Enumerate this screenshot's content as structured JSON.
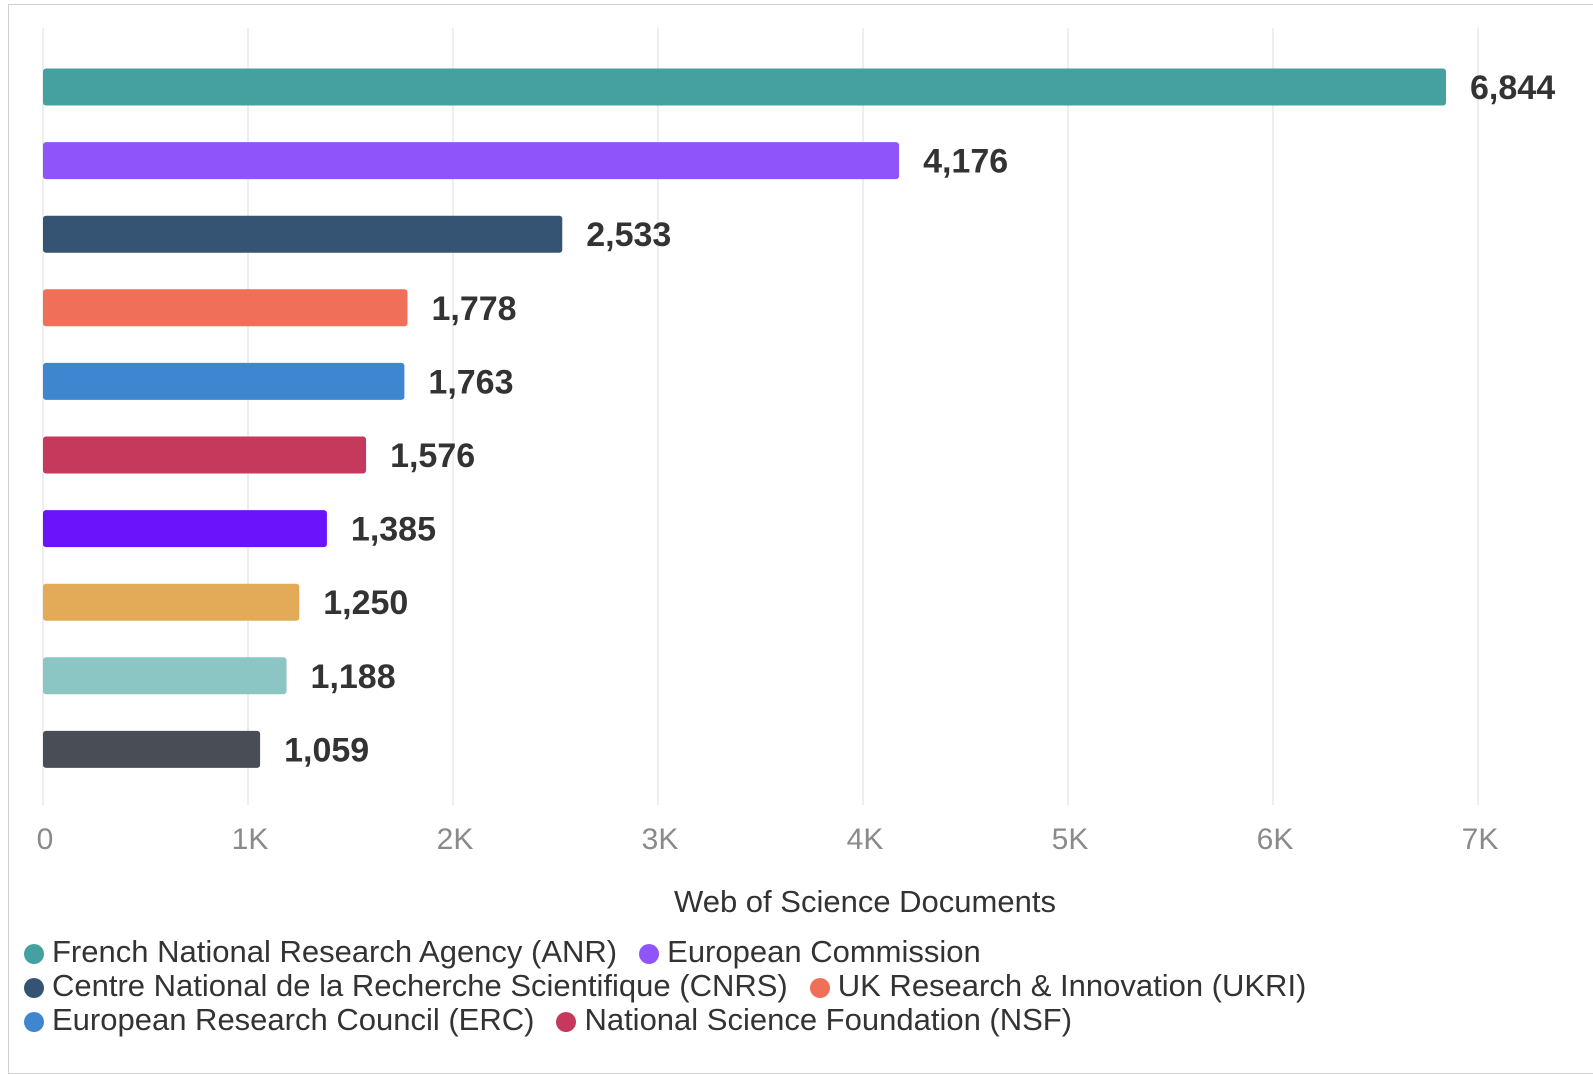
{
  "chart_data": {
    "type": "bar",
    "orientation": "horizontal",
    "xlabel": "Web of Science Documents",
    "xlim": [
      0,
      7000
    ],
    "xticks": [
      {
        "value": 0,
        "label": "0"
      },
      {
        "value": 1000,
        "label": "1K"
      },
      {
        "value": 2000,
        "label": "2K"
      },
      {
        "value": 3000,
        "label": "3K"
      },
      {
        "value": 4000,
        "label": "4K"
      },
      {
        "value": 5000,
        "label": "5K"
      },
      {
        "value": 6000,
        "label": "6K"
      },
      {
        "value": 7000,
        "label": "7K"
      }
    ],
    "grid": true,
    "legend_position": "bottom-left",
    "bars": [
      {
        "value": 6844,
        "label": "6,844",
        "color": "#45a19f"
      },
      {
        "value": 4176,
        "label": "4,176",
        "color": "#8f55fa"
      },
      {
        "value": 2533,
        "label": "2,533",
        "color": "#355473"
      },
      {
        "value": 1778,
        "label": "1,778",
        "color": "#f06f58"
      },
      {
        "value": 1763,
        "label": "1,763",
        "color": "#3f86d0"
      },
      {
        "value": 1576,
        "label": "1,576",
        "color": "#c53a5c"
      },
      {
        "value": 1385,
        "label": "1,385",
        "color": "#6b14fb"
      },
      {
        "value": 1250,
        "label": "1,250",
        "color": "#e3ab58"
      },
      {
        "value": 1188,
        "label": "1,188",
        "color": "#8cc6c4"
      },
      {
        "value": 1059,
        "label": "1,059",
        "color": "#494d55"
      }
    ],
    "legend": [
      [
        {
          "name": "French National Research Agency (ANR)",
          "color": "#45a19f"
        },
        {
          "name": "European Commission",
          "color": "#8f55fa"
        }
      ],
      [
        {
          "name": "Centre National de la Recherche Scientifique (CNRS)",
          "color": "#355473"
        },
        {
          "name": "UK Research & Innovation (UKRI)",
          "color": "#f06f58"
        }
      ],
      [
        {
          "name": "European Research Council (ERC)",
          "color": "#3f86d0"
        },
        {
          "name": "National Science Foundation (NSF)",
          "color": "#c53a5c"
        }
      ]
    ]
  }
}
